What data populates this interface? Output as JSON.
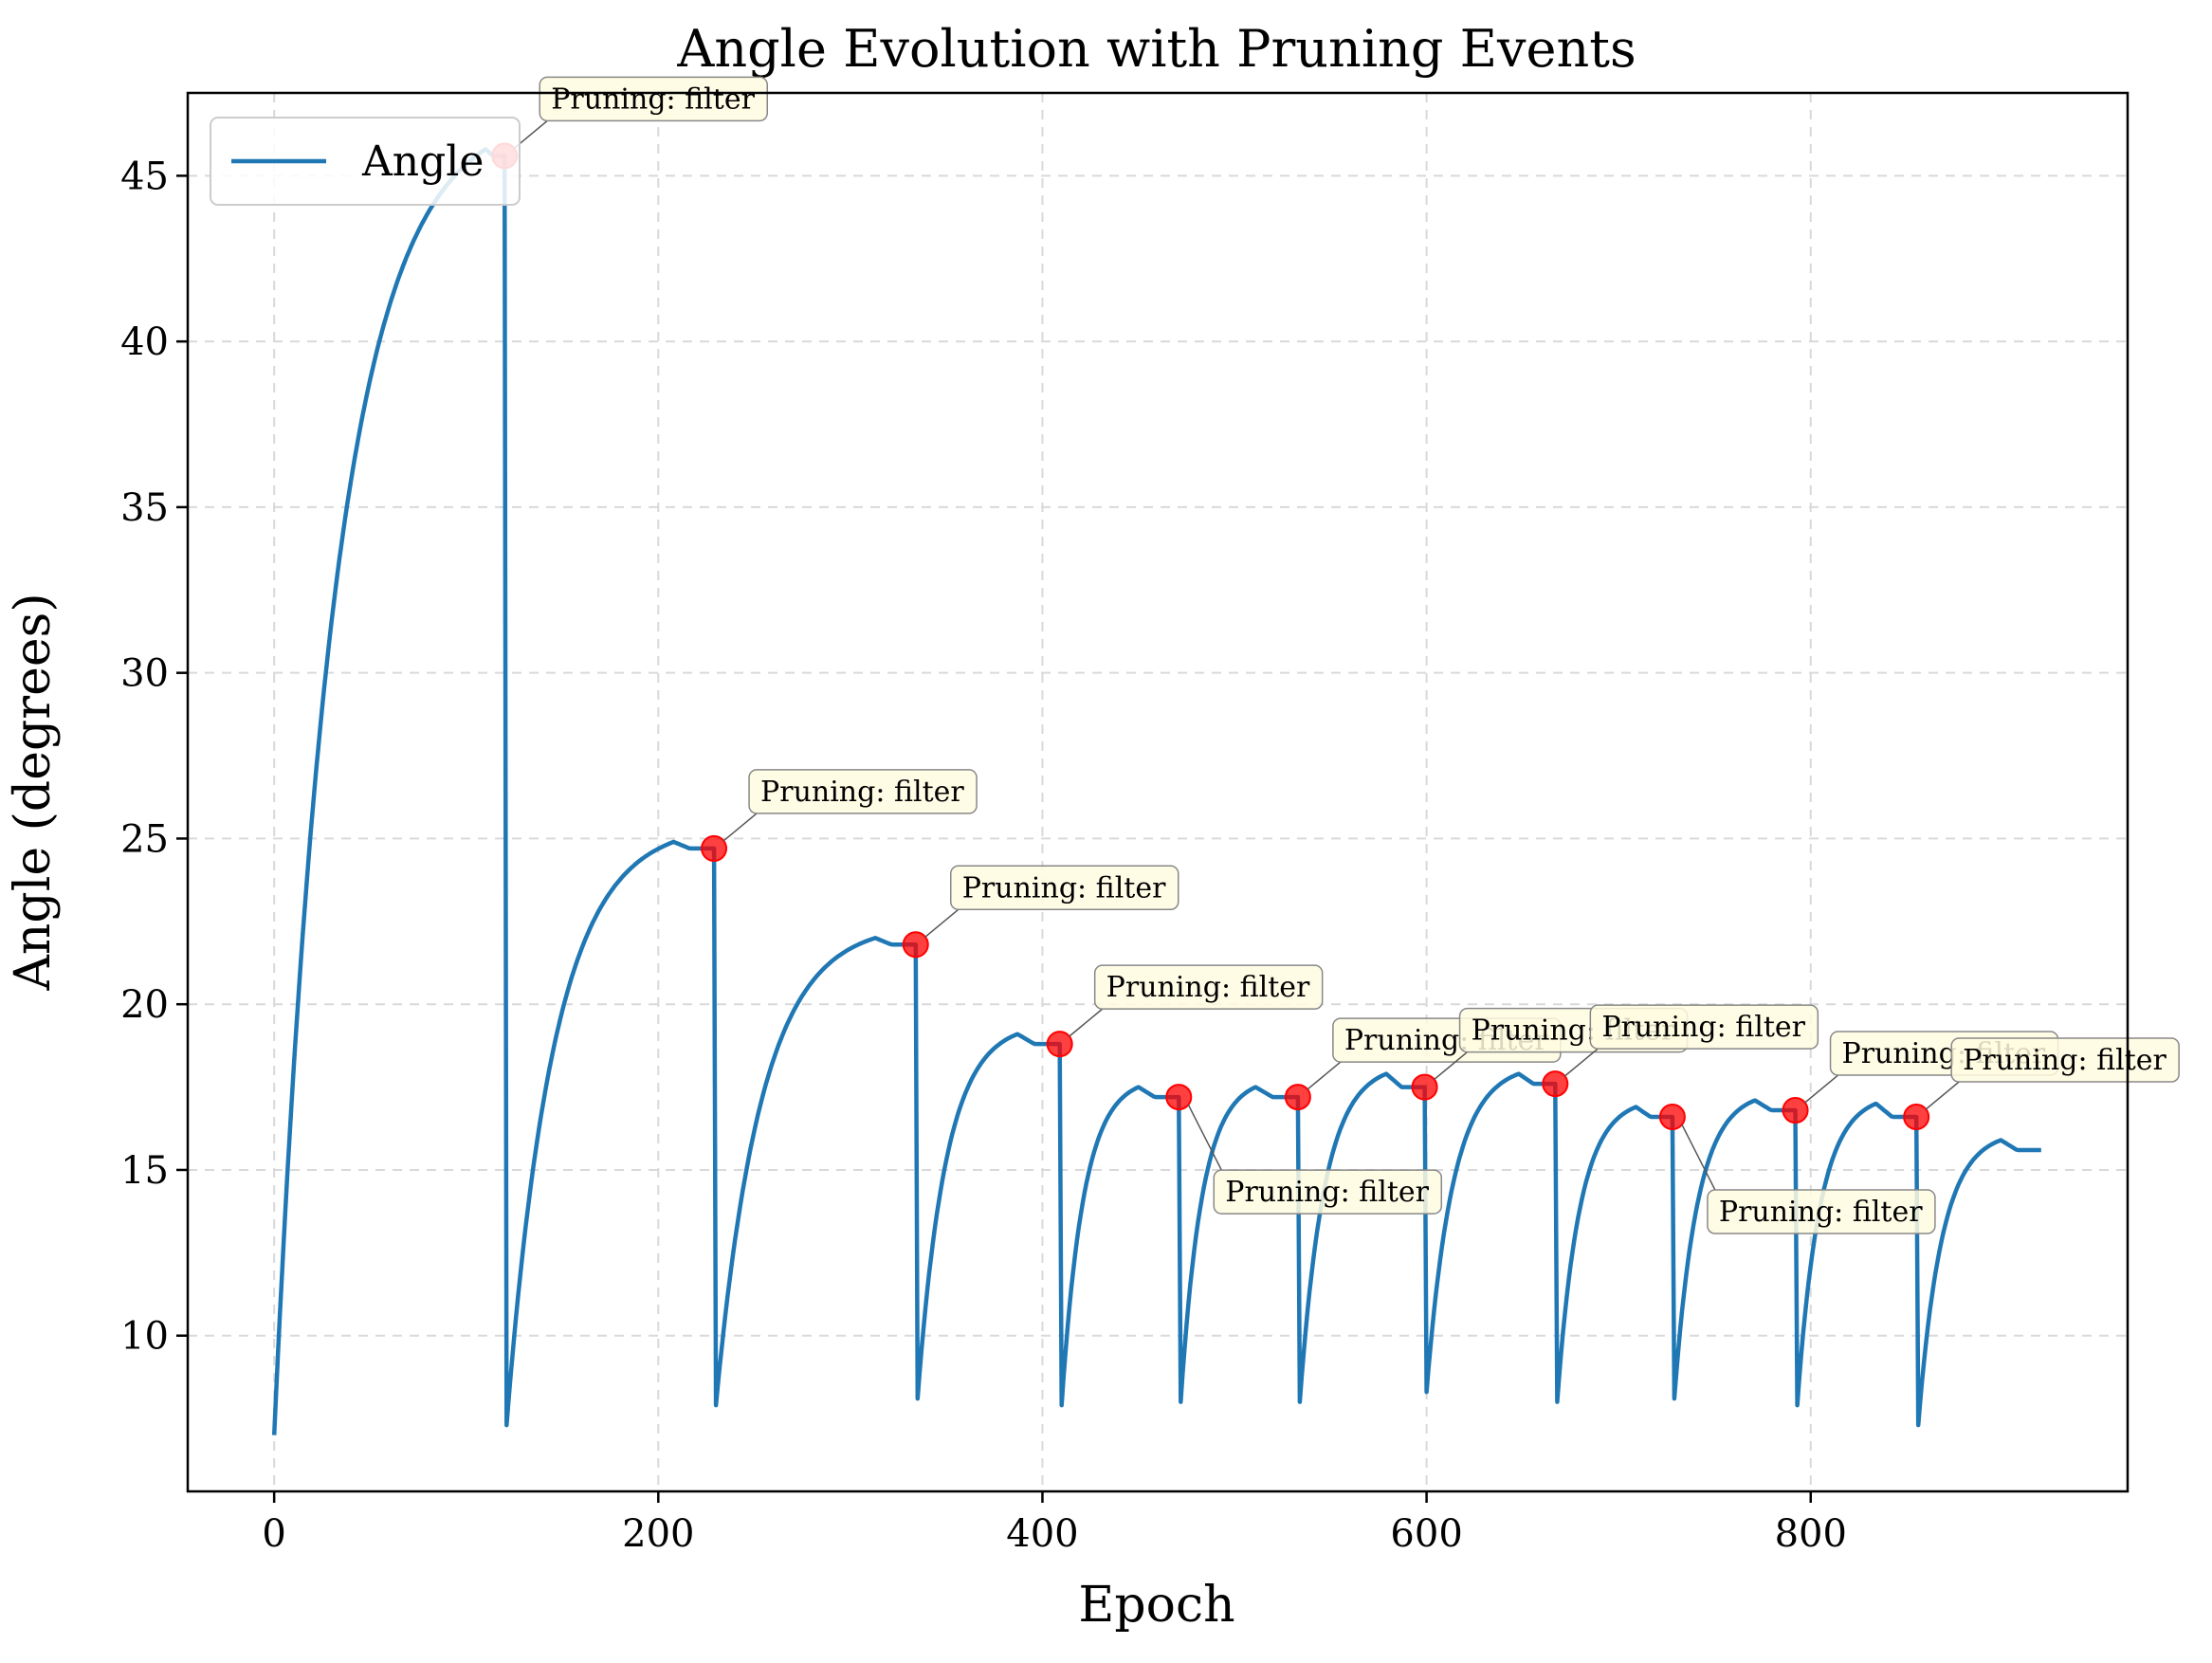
{
  "chart_data": {
    "type": "line",
    "title": "Angle Evolution with Pruning Events",
    "xlabel": "Epoch",
    "ylabel": "Angle (degrees)",
    "xlim": [
      -45,
      965
    ],
    "ylim": [
      5.3,
      47.5
    ],
    "xticks": [
      0,
      200,
      400,
      600,
      800
    ],
    "yticks": [
      10,
      15,
      20,
      25,
      30,
      35,
      40,
      45
    ],
    "grid": true,
    "legend_position": "top-left",
    "series": [
      {
        "name": "Angle",
        "color": "#1f77b4",
        "segments": [
          {
            "start": 0,
            "end": 120,
            "start_angle": 7.0,
            "peak_epoch": 110,
            "peak_angle": 45.8,
            "end_angle": 45.6
          },
          {
            "start": 121,
            "end": 229,
            "start_angle": 7.3,
            "peak_epoch": 208,
            "peak_angle": 24.9,
            "end_angle": 24.7
          },
          {
            "start": 230,
            "end": 334,
            "start_angle": 7.9,
            "peak_epoch": 313,
            "peak_angle": 22.0,
            "end_angle": 21.8
          },
          {
            "start": 335,
            "end": 409,
            "start_angle": 8.1,
            "peak_epoch": 387,
            "peak_angle": 19.1,
            "end_angle": 18.8
          },
          {
            "start": 410,
            "end": 471,
            "start_angle": 7.9,
            "peak_epoch": 450,
            "peak_angle": 17.5,
            "end_angle": 17.2
          },
          {
            "start": 472,
            "end": 533,
            "start_angle": 8.0,
            "peak_epoch": 511,
            "peak_angle": 17.5,
            "end_angle": 17.2
          },
          {
            "start": 534,
            "end": 599,
            "start_angle": 8.0,
            "peak_epoch": 579,
            "peak_angle": 17.9,
            "end_angle": 17.5
          },
          {
            "start": 600,
            "end": 667,
            "start_angle": 8.3,
            "peak_epoch": 648,
            "peak_angle": 17.9,
            "end_angle": 17.6
          },
          {
            "start": 668,
            "end": 728,
            "start_angle": 8.0,
            "peak_epoch": 709,
            "peak_angle": 16.9,
            "end_angle": 16.6
          },
          {
            "start": 729,
            "end": 792,
            "start_angle": 8.1,
            "peak_epoch": 771,
            "peak_angle": 17.1,
            "end_angle": 16.8
          },
          {
            "start": 793,
            "end": 855,
            "start_angle": 7.9,
            "peak_epoch": 834,
            "peak_angle": 17.0,
            "end_angle": 16.6
          },
          {
            "start": 856,
            "end": 920,
            "start_angle": 7.3,
            "peak_epoch": 899,
            "peak_angle": 15.9,
            "end_angle": 15.6
          }
        ]
      }
    ],
    "pruning_events": [
      {
        "epoch": 120,
        "angle": 45.6,
        "label": "Pruning: filter"
      },
      {
        "epoch": 229,
        "angle": 24.7,
        "label": "Pruning: filter"
      },
      {
        "epoch": 334,
        "angle": 21.8,
        "label": "Pruning: filter"
      },
      {
        "epoch": 409,
        "angle": 18.8,
        "label": "Pruning: filter"
      },
      {
        "epoch": 471,
        "angle": 17.2,
        "label": "Pruning: filter"
      },
      {
        "epoch": 533,
        "angle": 17.2,
        "label": "Pruning: filter"
      },
      {
        "epoch": 599,
        "angle": 17.5,
        "label": "Pruning: filter"
      },
      {
        "epoch": 667,
        "angle": 17.6,
        "label": "Pruning: filter"
      },
      {
        "epoch": 728,
        "angle": 16.6,
        "label": "Pruning: filter"
      },
      {
        "epoch": 792,
        "angle": 16.8,
        "label": "Pruning: filter"
      },
      {
        "epoch": 855,
        "angle": 16.6,
        "label": "Pruning: filter"
      }
    ],
    "marker_color": "#ff0000",
    "annotation_box_color": "#fffbe0"
  }
}
